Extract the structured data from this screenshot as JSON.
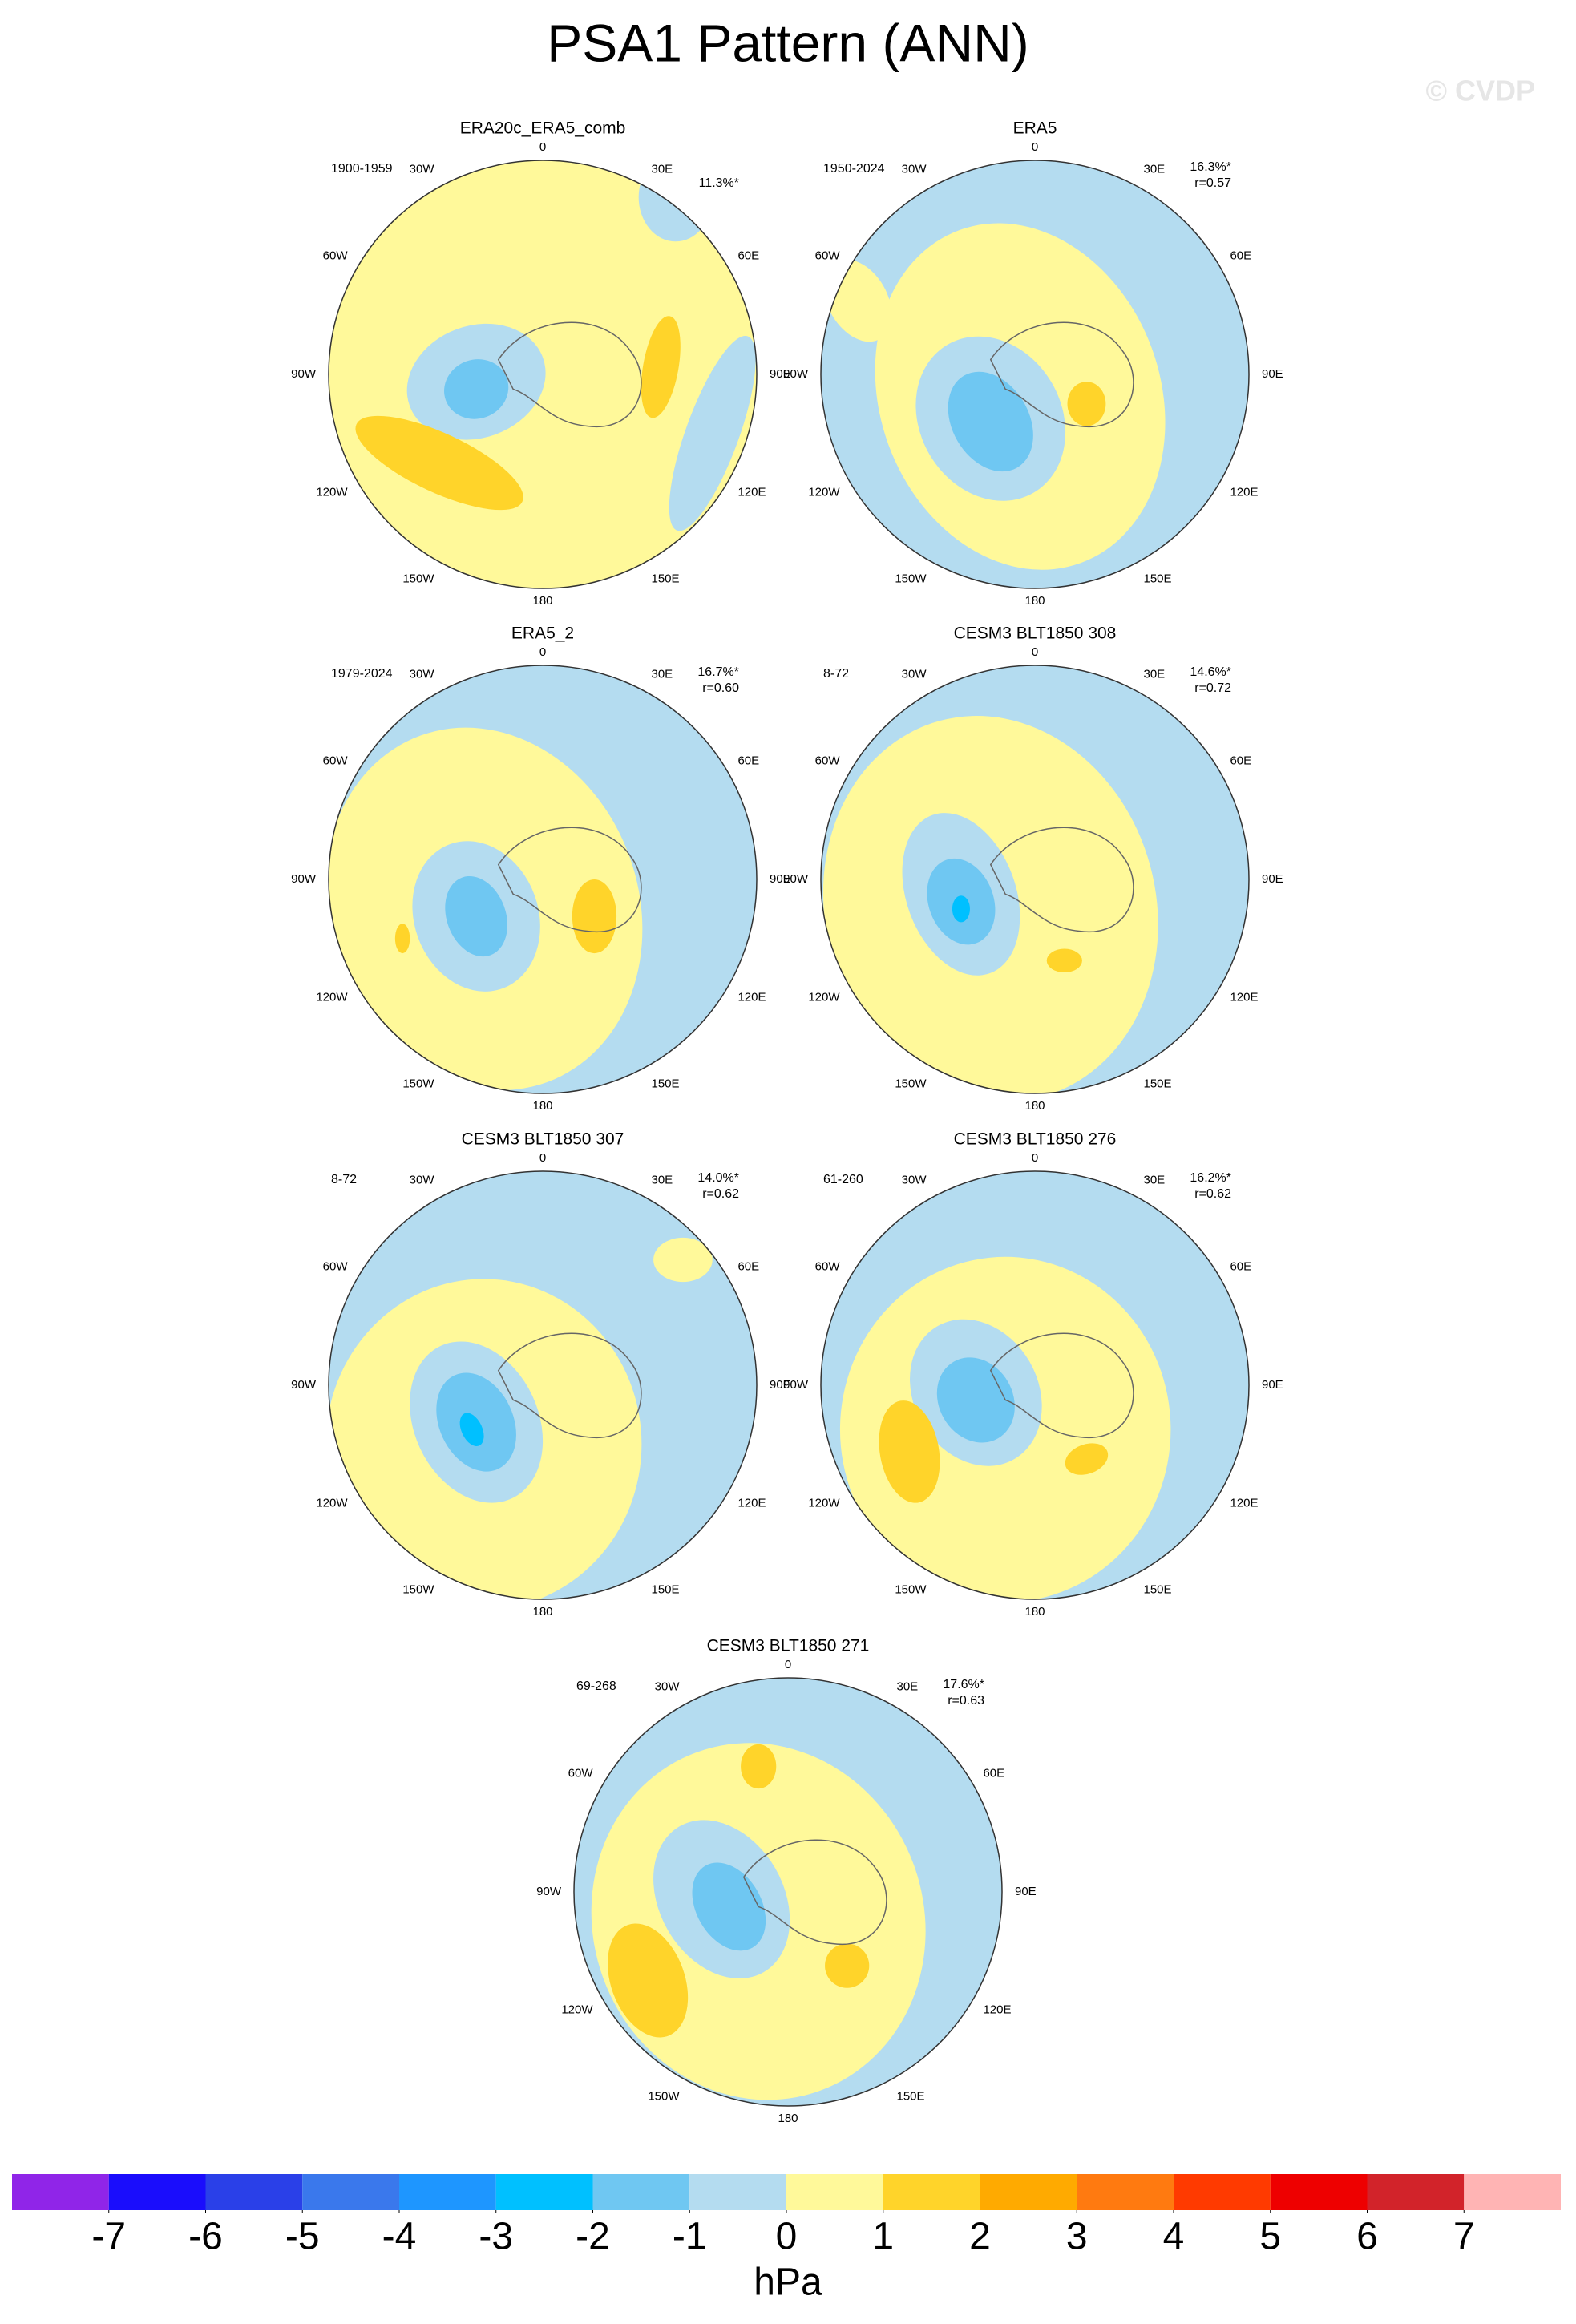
{
  "title": "PSA1 Pattern (ANN)",
  "watermark": "© CVDP",
  "lon_labels": [
    "0",
    "30E",
    "60E",
    "90E",
    "120E",
    "150E",
    "180",
    "150W",
    "120W",
    "90W",
    "60W",
    "30W"
  ],
  "panels": [
    {
      "title": "ERA20c_ERA5_comb",
      "period": "1900-1959",
      "pct": "11.3%*"
    },
    {
      "title": "ERA5",
      "period": "1950-2024",
      "pct": "16.3%*",
      "r": "r=0.57"
    },
    {
      "title": "ERA5_2",
      "period": "1979-2024",
      "pct": "16.7%*",
      "r": "r=0.60"
    },
    {
      "title": "CESM3 BLT1850 308",
      "period": "8-72",
      "pct": "14.6%*",
      "r": "r=0.72"
    },
    {
      "title": "CESM3 BLT1850 307",
      "period": "8-72",
      "pct": "14.0%*",
      "r": "r=0.62"
    },
    {
      "title": "CESM3 BLT1850 276",
      "period": "61-260",
      "pct": "16.2%*",
      "r": "r=0.62"
    },
    {
      "title": "CESM3 BLT1850 271",
      "period": "69-268",
      "pct": "17.6%*",
      "r": "r=0.63"
    }
  ],
  "colorbar": {
    "colors": [
      "#9025e8",
      "#1a0dfc",
      "#2a40e8",
      "#3a78ec",
      "#1e96ff",
      "#00c0ff",
      "#6fc7f2",
      "#b4dcf0",
      "#fff99a",
      "#ffd42a",
      "#ffaa00",
      "#ff7a10",
      "#ff3a00",
      "#ee0000",
      "#d2232a",
      "#ffb4b4"
    ],
    "ticks": [
      -7,
      -6,
      -5,
      -4,
      -3,
      -2,
      -1,
      0,
      1,
      2,
      3,
      4,
      5,
      6,
      7
    ],
    "unit": "hPa"
  }
}
